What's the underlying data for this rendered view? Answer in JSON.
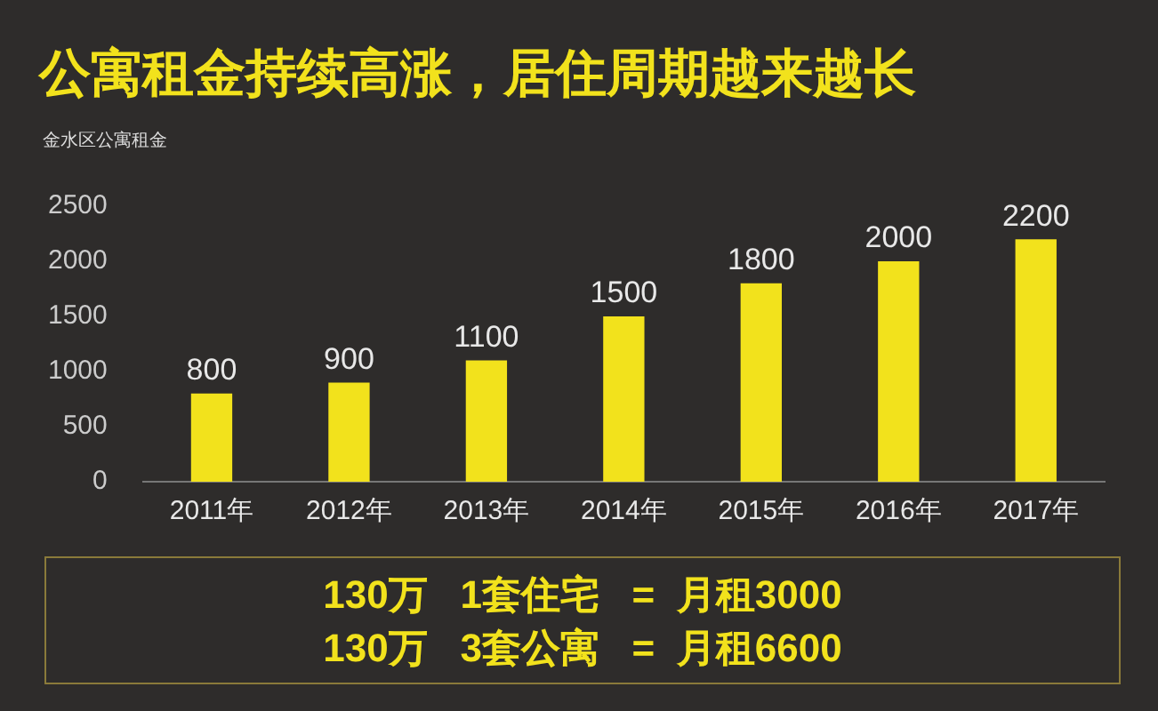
{
  "chart_data": {
    "type": "bar",
    "title": "公寓租金持续高涨，居住周期越来越长",
    "subtitle": "金水区公寓租金",
    "categories": [
      "2011年",
      "2012年",
      "2013年",
      "2014年",
      "2015年",
      "2016年",
      "2017年"
    ],
    "values": [
      800,
      900,
      1100,
      1500,
      1800,
      2000,
      2200
    ],
    "color": "#f2e21c",
    "data_labels": true,
    "ylim": [
      0,
      2500
    ],
    "yticks": [
      0,
      500,
      1000,
      1500,
      2000,
      2500
    ],
    "grid": false,
    "annotations": [
      "130万   1套住宅   =  月租3000",
      "130万   3套公寓   =  月租6600"
    ]
  }
}
